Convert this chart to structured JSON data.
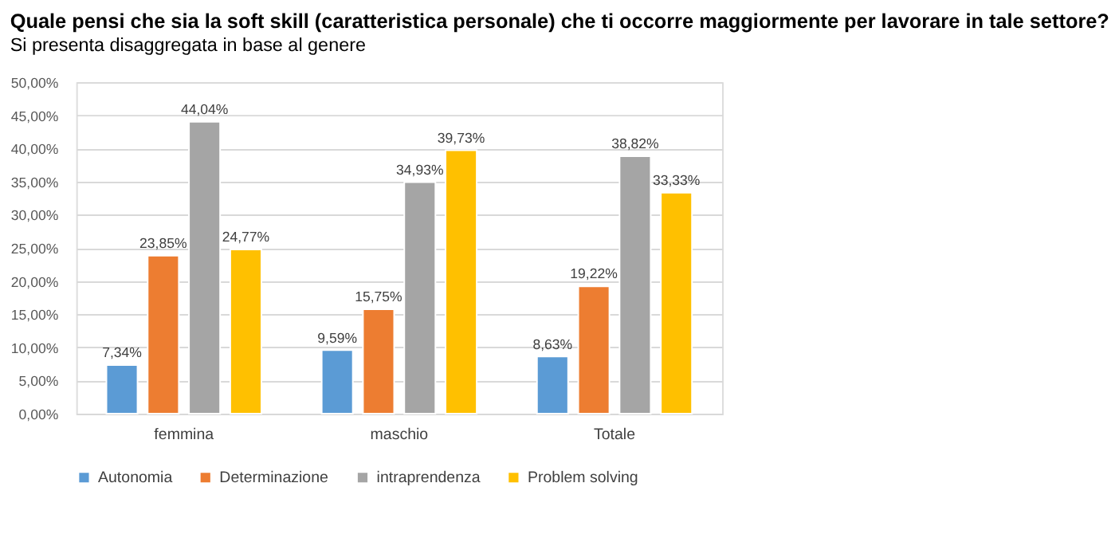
{
  "chart_data": {
    "type": "bar",
    "title": "Quale pensi che sia la soft skill (caratteristica personale) che ti occorre maggiormente per lavorare in tale settore?",
    "subtitle": "Si presenta disaggregata in base al genere",
    "categories": [
      "femmina",
      "maschio",
      "Totale"
    ],
    "series": [
      {
        "name": "Autonomia",
        "color": "#5b9bd5",
        "values": [
          7.34,
          9.59,
          8.63
        ],
        "value_labels": [
          "7,34%",
          "9,59%",
          "8,63%"
        ]
      },
      {
        "name": "Determinazione",
        "color": "#ed7d31",
        "values": [
          23.85,
          15.75,
          19.22
        ],
        "value_labels": [
          "23,85%",
          "15,75%",
          "19,22%"
        ]
      },
      {
        "name": "intraprendenza",
        "color": "#a5a5a5",
        "values": [
          44.04,
          34.93,
          38.82
        ],
        "value_labels": [
          "44,04%",
          "34,93%",
          "38,82%"
        ]
      },
      {
        "name": "Problem solving",
        "color": "#ffc000",
        "values": [
          24.77,
          39.73,
          33.33
        ],
        "value_labels": [
          "24,77%",
          "39,73%",
          "33,33%"
        ]
      }
    ],
    "ylim": [
      0,
      50
    ],
    "yticks": [
      {
        "value": 0,
        "label": "0,00%"
      },
      {
        "value": 5,
        "label": "5,00%"
      },
      {
        "value": 10,
        "label": "10,00%"
      },
      {
        "value": 15,
        "label": "15,00%"
      },
      {
        "value": 20,
        "label": "20,00%"
      },
      {
        "value": 25,
        "label": "25,00%"
      },
      {
        "value": 30,
        "label": "30,00%"
      },
      {
        "value": 35,
        "label": "35,00%"
      },
      {
        "value": 40,
        "label": "40,00%"
      },
      {
        "value": 45,
        "label": "45,00%"
      },
      {
        "value": 50,
        "label": "50,00%"
      }
    ],
    "grid": "y",
    "legend": "bottom"
  }
}
